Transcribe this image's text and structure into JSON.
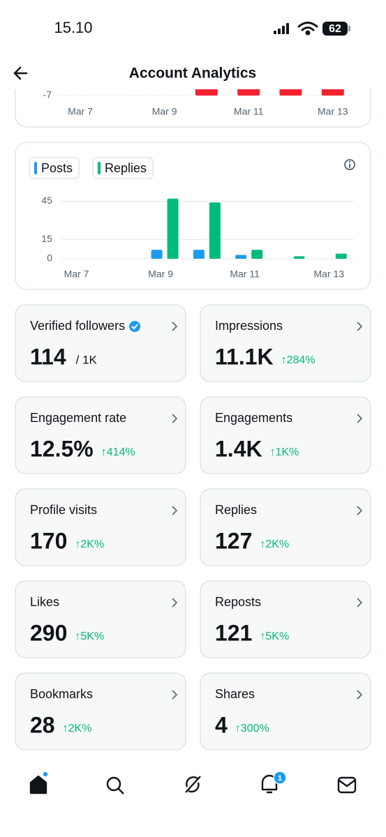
{
  "status_bar": {
    "time": "15.10",
    "battery": "62"
  },
  "header": {
    "title": "Account Analytics"
  },
  "chart_data": [
    {
      "type": "bar",
      "categories": [
        "Mar 7",
        null,
        "Mar 9",
        null,
        "Mar 11",
        null,
        "Mar 13"
      ],
      "values": [
        0,
        0,
        0,
        -7,
        -7,
        -7,
        -7
      ],
      "color": "#f4212e",
      "ylim": [
        -7,
        0
      ],
      "yticks": [
        -7
      ],
      "grid": true
    },
    {
      "type": "grouped_bar",
      "categories": [
        "Mar 7",
        null,
        "Mar 9",
        null,
        "Mar 11",
        null,
        "Mar 13"
      ],
      "series": [
        {
          "name": "Posts",
          "color": "#1d9bf0",
          "values": [
            0,
            0,
            7,
            7,
            3,
            0,
            0
          ]
        },
        {
          "name": "Replies",
          "color": "#00ba7c",
          "values": [
            0,
            0,
            47,
            44,
            7,
            2,
            4
          ]
        }
      ],
      "ylim": [
        0,
        50
      ],
      "yticks": [
        0,
        15,
        45
      ],
      "grid": true
    }
  ],
  "metrics": [
    {
      "label": "Verified followers",
      "value": "114",
      "total": "/ 1K"
    },
    {
      "label": "Impressions",
      "value": "11.1K",
      "change": "↑284%"
    },
    {
      "label": "Engagement rate",
      "value": "12.5%",
      "change": "↑414%"
    },
    {
      "label": "Engagements",
      "value": "1.4K",
      "change": "↑1K%"
    },
    {
      "label": "Profile visits",
      "value": "170",
      "change": "↑2K%"
    },
    {
      "label": "Replies",
      "value": "127",
      "change": "↑2K%"
    },
    {
      "label": "Likes",
      "value": "290",
      "change": "↑5K%"
    },
    {
      "label": "Reposts",
      "value": "121",
      "change": "↑5K%"
    },
    {
      "label": "Bookmarks",
      "value": "28",
      "change": "↑2K%"
    },
    {
      "label": "Shares",
      "value": "4",
      "change": "↑300%"
    }
  ],
  "nav": {
    "notifications": "1"
  }
}
